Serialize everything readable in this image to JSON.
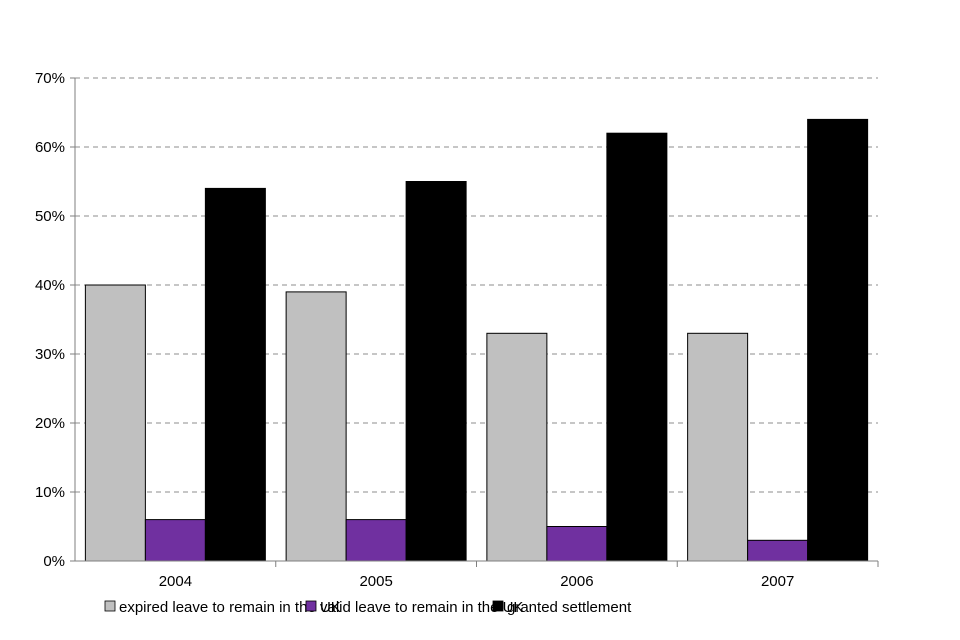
{
  "chart_data": {
    "type": "bar",
    "title": "",
    "xlabel": "",
    "ylabel": "",
    "categories": [
      "2004",
      "2005",
      "2006",
      "2007"
    ],
    "ylim": [
      0,
      70
    ],
    "yticks": [
      0,
      10,
      20,
      30,
      40,
      50,
      60,
      70
    ],
    "ytick_labels": [
      "0%",
      "10%",
      "20%",
      "30%",
      "40%",
      "50%",
      "60%",
      "70%"
    ],
    "grid": "dashed horizontal",
    "legend_position": "bottom",
    "series": [
      {
        "name": "expired leave to remain in the UK",
        "color": "#c0c0c0",
        "values": [
          40,
          39,
          33,
          33
        ]
      },
      {
        "name": "valid leave to remain in the UK",
        "color": "#7030a0",
        "values": [
          6,
          6,
          5,
          3
        ]
      },
      {
        "name": "granted settlement",
        "color": "#000000",
        "values": [
          54,
          55,
          62,
          64
        ]
      }
    ]
  }
}
